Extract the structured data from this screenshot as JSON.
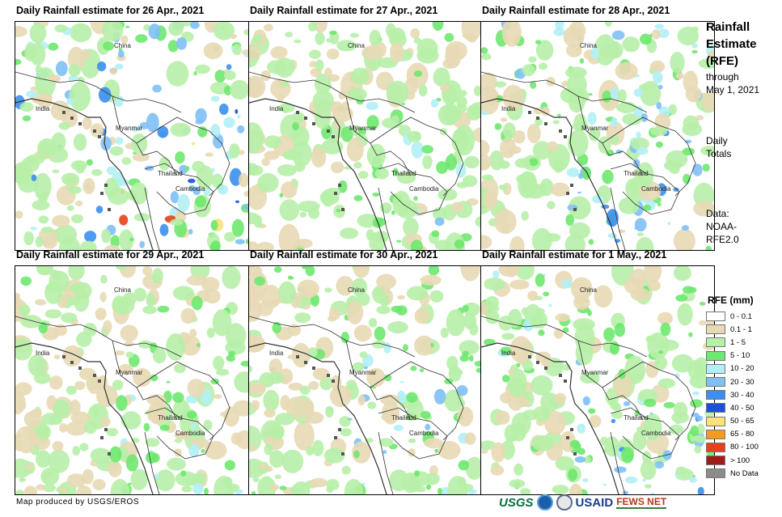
{
  "panels": [
    {
      "title": "Daily Rainfall estimate for 26 Apr., 2021",
      "intensity": 0.85
    },
    {
      "title": "Daily Rainfall estimate for 27 Apr., 2021",
      "intensity": 0.55
    },
    {
      "title": "Daily Rainfall estimate for 28 Apr., 2021",
      "intensity": 0.75
    },
    {
      "title": "Daily Rainfall estimate for 29 Apr., 2021",
      "intensity": 0.5
    },
    {
      "title": "Daily Rainfall estimate for 30 Apr., 2021",
      "intensity": 0.6
    },
    {
      "title": "Daily Rainfall estimate for 1 May., 2021",
      "intensity": 0.65
    }
  ],
  "map_labels": {
    "china": "China",
    "india": "India",
    "myanmar": "Myanmar",
    "thailand": "Thailand",
    "cambodia": "Cambodia"
  },
  "sidebar": {
    "title_lines": [
      "Rainfall",
      "Estimate",
      "(RFE)"
    ],
    "through_lines": [
      "through",
      "May 1, 2021"
    ],
    "totals_lines": [
      "Daily",
      "Totals"
    ],
    "data_lines": [
      "Data:",
      "NOAA-",
      "RFE2.0"
    ]
  },
  "legend": {
    "title": "RFE (mm)",
    "items": [
      {
        "label": "0 - 0.1",
        "color": "#ffffff"
      },
      {
        "label": "0.1 - 1",
        "color": "#e8d9b5"
      },
      {
        "label": "1 - 5",
        "color": "#b7f0a9"
      },
      {
        "label": "5 - 10",
        "color": "#6ee86e"
      },
      {
        "label": "10 - 20",
        "color": "#b3f0f5"
      },
      {
        "label": "20 - 30",
        "color": "#7fc0f5"
      },
      {
        "label": "30 - 40",
        "color": "#3c8ff0"
      },
      {
        "label": "40 - 50",
        "color": "#1c4fe0"
      },
      {
        "label": "50 - 65",
        "color": "#f9e27a"
      },
      {
        "label": "65 - 80",
        "color": "#f59b1a"
      },
      {
        "label": "80 - 100",
        "color": "#e8401a"
      },
      {
        "label": "> 100",
        "color": "#a01c1c"
      },
      {
        "label": "No Data",
        "color": "#8c8c8c"
      }
    ]
  },
  "footer": {
    "credit": "Map produced by USGS/EROS"
  },
  "logos": {
    "usgs": "USGS",
    "usaid": "USAID",
    "fews": "FEWS NET"
  }
}
